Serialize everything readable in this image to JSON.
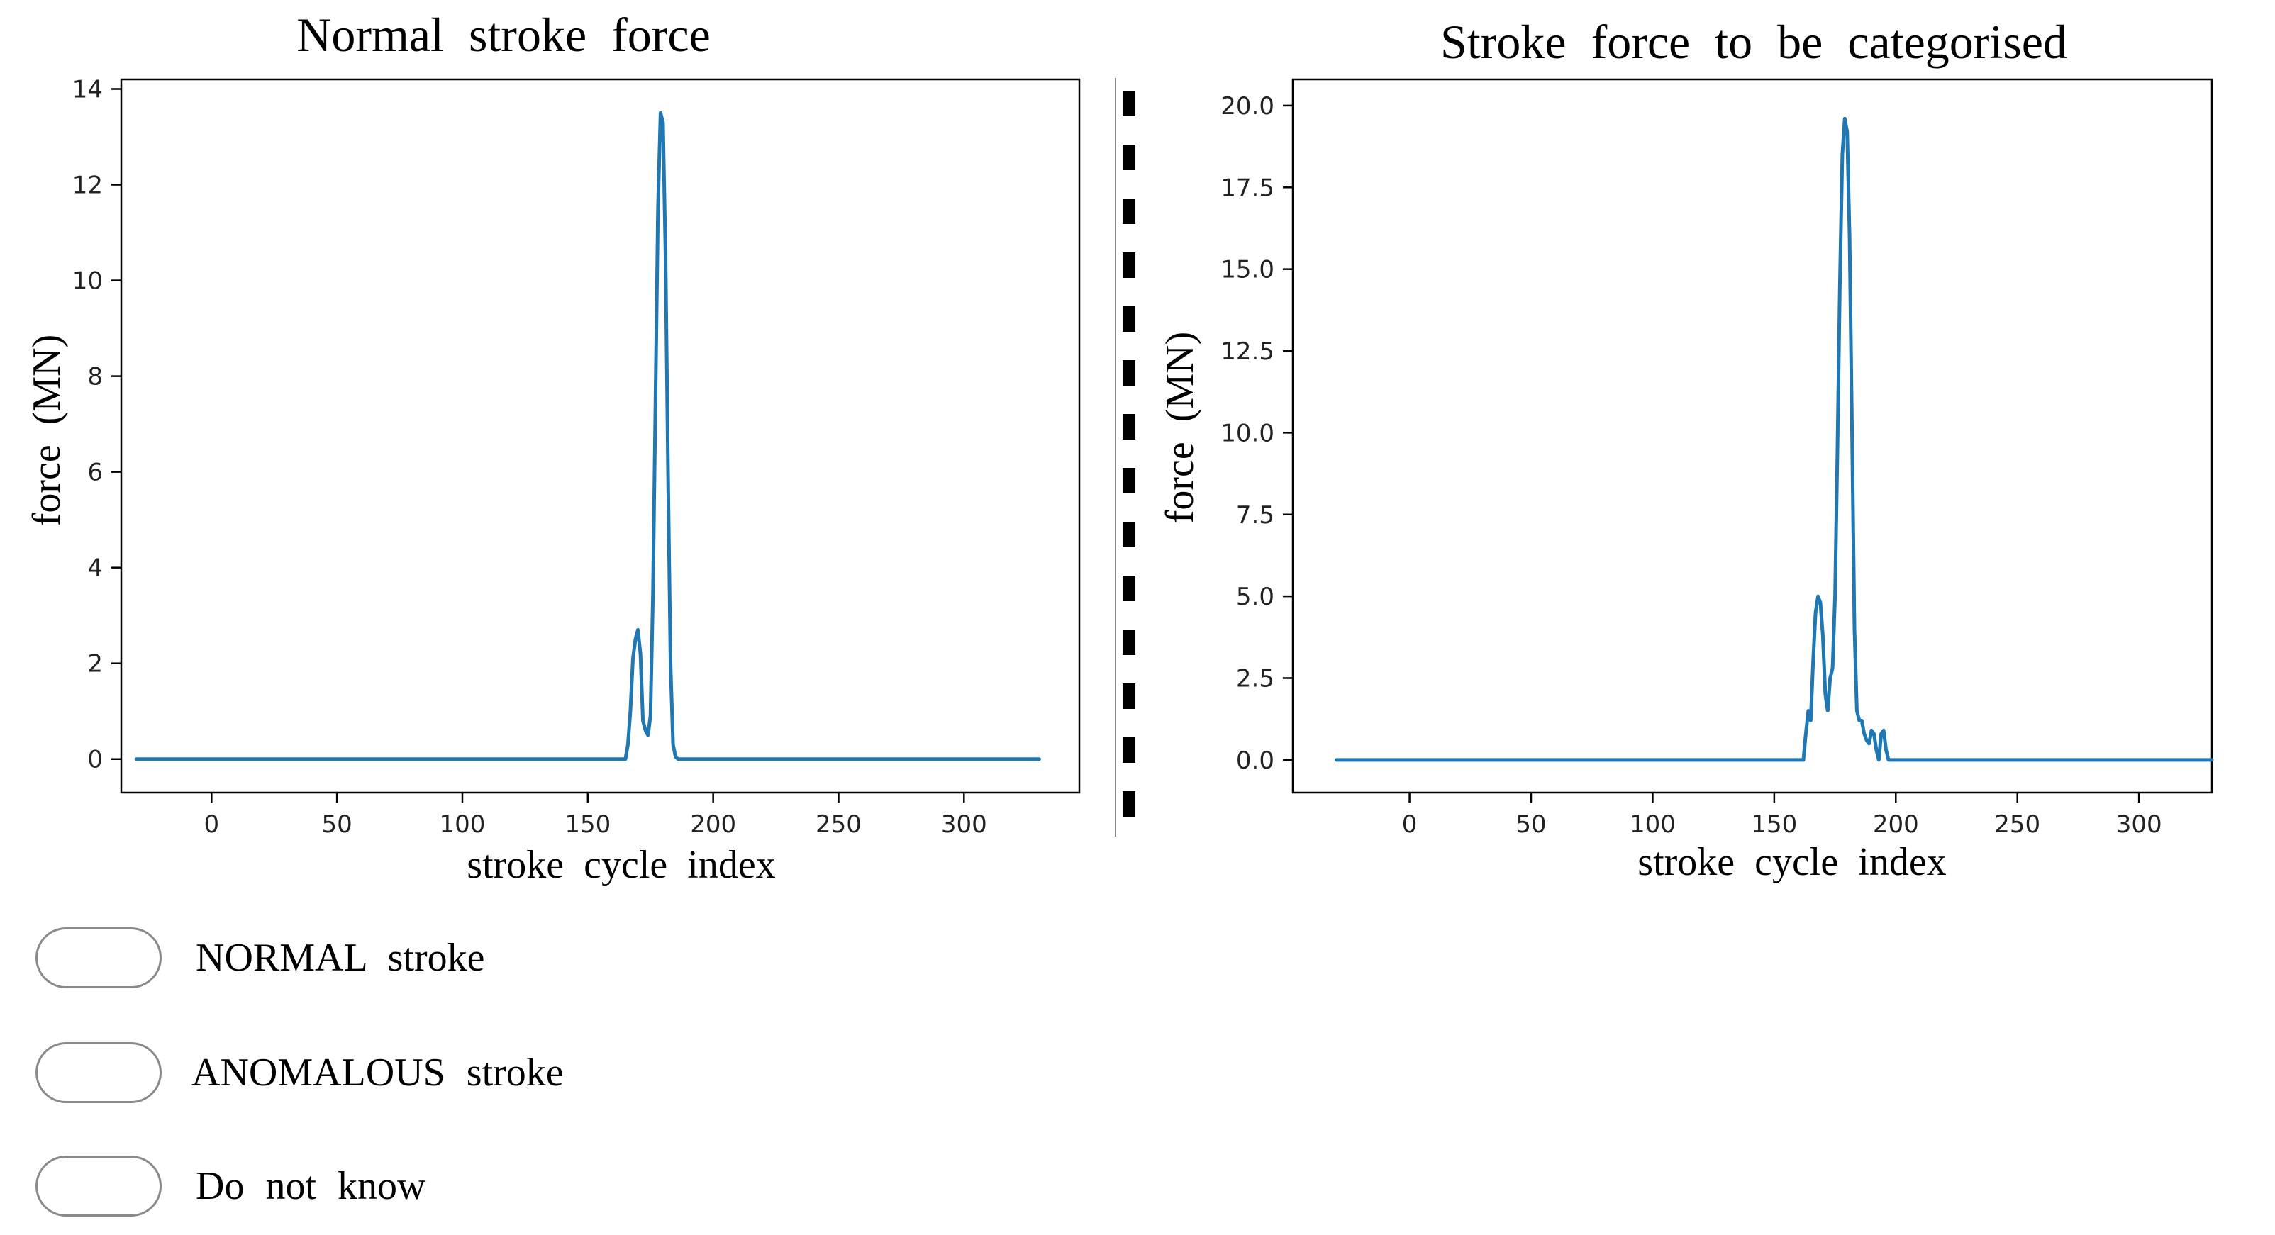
{
  "chart_data": [
    {
      "type": "line",
      "title": "Normal stroke force",
      "xlabel": "stroke cycle index",
      "ylabel": "force (MN)",
      "xlim": [
        -36,
        346
      ],
      "ylim": [
        -0.7,
        14.2
      ],
      "xticks": [
        0,
        50,
        100,
        150,
        200,
        250,
        300
      ],
      "yticks": [
        0,
        2,
        4,
        6,
        8,
        10,
        12,
        14
      ],
      "ytick_labels": [
        "0",
        "2",
        "4",
        "6",
        "8",
        "10",
        "12",
        "14"
      ],
      "grid": false,
      "series": [
        {
          "color": "#1f77b4",
          "x": [
            -30,
            165,
            166,
            167,
            168,
            169,
            170,
            171,
            172,
            173,
            174,
            175,
            176,
            177,
            178,
            179,
            180,
            181,
            182,
            183,
            184,
            185,
            186,
            330
          ],
          "y": [
            0,
            0,
            0.3,
            1.0,
            2.1,
            2.5,
            2.7,
            2.2,
            0.8,
            0.6,
            0.5,
            0.9,
            3.5,
            7.5,
            11.5,
            13.5,
            13.3,
            10.5,
            6.0,
            2.0,
            0.3,
            0.05,
            0,
            0
          ]
        }
      ]
    },
    {
      "type": "line",
      "title": "Stroke force to be categorised",
      "xlabel": "stroke cycle index",
      "ylabel": "force (MN)",
      "xlim": [
        -48,
        330
      ],
      "ylim": [
        -1.0,
        20.8
      ],
      "xticks": [
        0,
        50,
        100,
        150,
        200,
        250,
        300
      ],
      "yticks": [
        0,
        2.5,
        5,
        7.5,
        10,
        12.5,
        15,
        17.5,
        20
      ],
      "ytick_labels": [
        "0.0",
        "2.5",
        "5.0",
        "7.5",
        "10.0",
        "12.5",
        "15.0",
        "17.5",
        "20.0"
      ],
      "grid": false,
      "series": [
        {
          "color": "#1f77b4",
          "x": [
            -30,
            162,
            163,
            164,
            165,
            166,
            167,
            168,
            169,
            170,
            171,
            172,
            173,
            174,
            175,
            176,
            177,
            178,
            179,
            180,
            181,
            182,
            183,
            184,
            185,
            186,
            187,
            188,
            189,
            190,
            191,
            192,
            193,
            194,
            195,
            196,
            197,
            198,
            330
          ],
          "y": [
            0,
            0,
            0.8,
            1.5,
            1.2,
            3.0,
            4.5,
            5.0,
            4.8,
            3.8,
            2.0,
            1.5,
            2.5,
            2.8,
            5.0,
            9.5,
            14.5,
            18.5,
            19.6,
            19.2,
            16.0,
            10.0,
            4.0,
            1.5,
            1.2,
            1.2,
            0.8,
            0.6,
            0.5,
            0.9,
            0.8,
            0.3,
            0.0,
            0.8,
            0.9,
            0.3,
            0,
            0,
            0
          ]
        }
      ]
    }
  ],
  "options": [
    {
      "label": "NORMAL stroke"
    },
    {
      "label": "ANOMALOUS stroke"
    },
    {
      "label": "Do not know"
    }
  ],
  "colors": {
    "series": "#1f77b4",
    "divider": "#000000",
    "pill_border": "#8a8a8a"
  }
}
